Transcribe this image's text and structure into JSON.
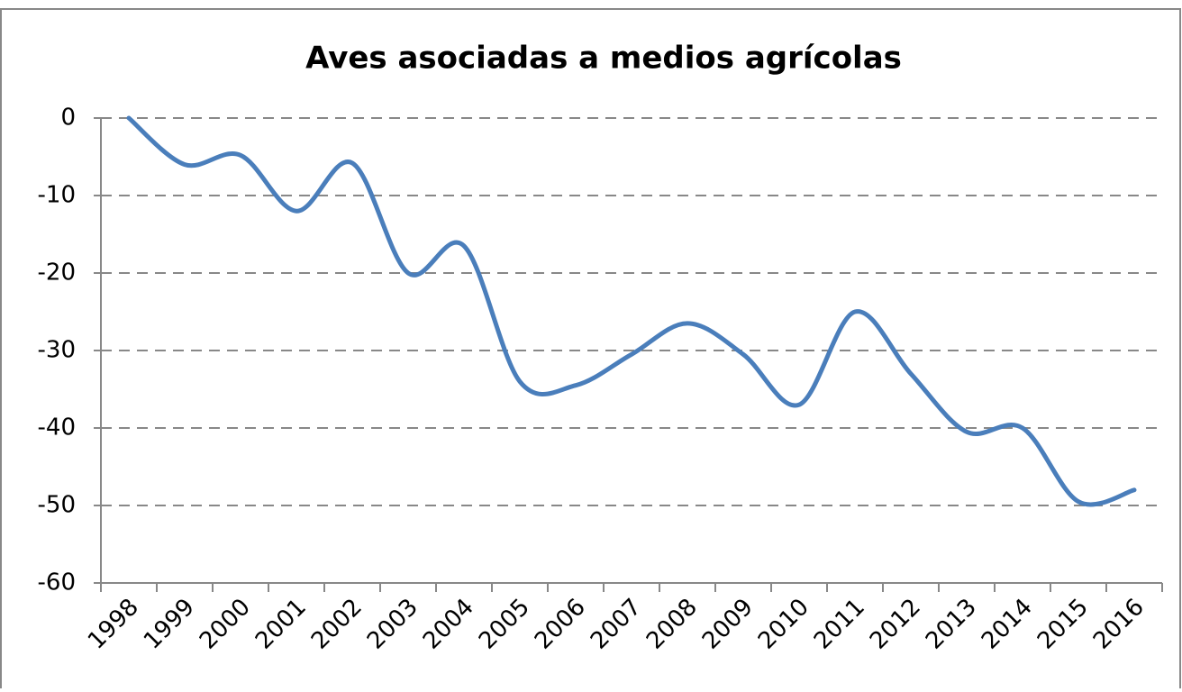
{
  "chart_data": {
    "type": "line",
    "title": "Aves asociadas a medios agrícolas",
    "categories": [
      "1998",
      "1999",
      "2000",
      "2001",
      "2002",
      "2003",
      "2004",
      "2005",
      "2006",
      "2007",
      "2008",
      "2009",
      "2010",
      "2011",
      "2012",
      "2013",
      "2014",
      "2015",
      "2016"
    ],
    "series": [
      {
        "name": "Aves asociadas a medios agrícolas",
        "color": "#4a7ebb",
        "values": [
          0,
          -6,
          -4.8,
          -12,
          -5.8,
          -20,
          -16.5,
          -34,
          -34.5,
          -30.5,
          -26.5,
          -30.5,
          -37,
          -25,
          -33,
          -40.5,
          -40,
          -49.5,
          -48
        ]
      }
    ],
    "ylim": [
      -60,
      0
    ],
    "yticks": [
      0,
      -10,
      -20,
      -30,
      -40,
      -50,
      -60
    ],
    "grid": true
  }
}
